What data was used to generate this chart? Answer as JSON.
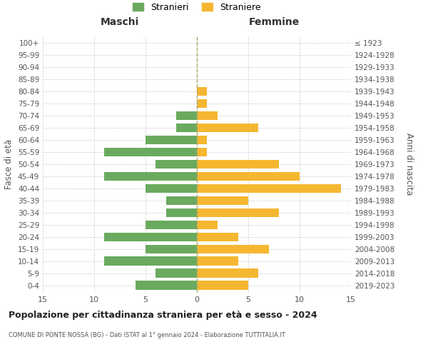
{
  "age_groups": [
    "0-4",
    "5-9",
    "10-14",
    "15-19",
    "20-24",
    "25-29",
    "30-34",
    "35-39",
    "40-44",
    "45-49",
    "50-54",
    "55-59",
    "60-64",
    "65-69",
    "70-74",
    "75-79",
    "80-84",
    "85-89",
    "90-94",
    "95-99",
    "100+"
  ],
  "birth_years": [
    "2019-2023",
    "2014-2018",
    "2009-2013",
    "2004-2008",
    "1999-2003",
    "1994-1998",
    "1989-1993",
    "1984-1988",
    "1979-1983",
    "1974-1978",
    "1969-1973",
    "1964-1968",
    "1959-1963",
    "1954-1958",
    "1949-1953",
    "1944-1948",
    "1939-1943",
    "1934-1938",
    "1929-1933",
    "1924-1928",
    "≤ 1923"
  ],
  "maschi": [
    6,
    4,
    9,
    5,
    9,
    5,
    3,
    3,
    5,
    9,
    4,
    9,
    5,
    2,
    2,
    0,
    0,
    0,
    0,
    0,
    0
  ],
  "femmine": [
    5,
    6,
    4,
    7,
    4,
    2,
    8,
    5,
    14,
    10,
    8,
    1,
    1,
    6,
    2,
    1,
    1,
    0,
    0,
    0,
    0
  ],
  "maschi_color": "#6aaa5e",
  "femmine_color": "#f5b731",
  "title": "Popolazione per cittadinanza straniera per età e sesso - 2024",
  "subtitle": "COMUNE DI PONTE NOSSA (BG) - Dati ISTAT al 1° gennaio 2024 - Elaborazione TUTTITALIA.IT",
  "xlabel_left": "Maschi",
  "xlabel_right": "Femmine",
  "ylabel_left": "Fasce di età",
  "ylabel_right": "Anni di nascita",
  "xlim": 15,
  "legend_maschi": "Stranieri",
  "legend_femmine": "Straniere",
  "background_color": "#ffffff",
  "grid_color": "#cccccc"
}
